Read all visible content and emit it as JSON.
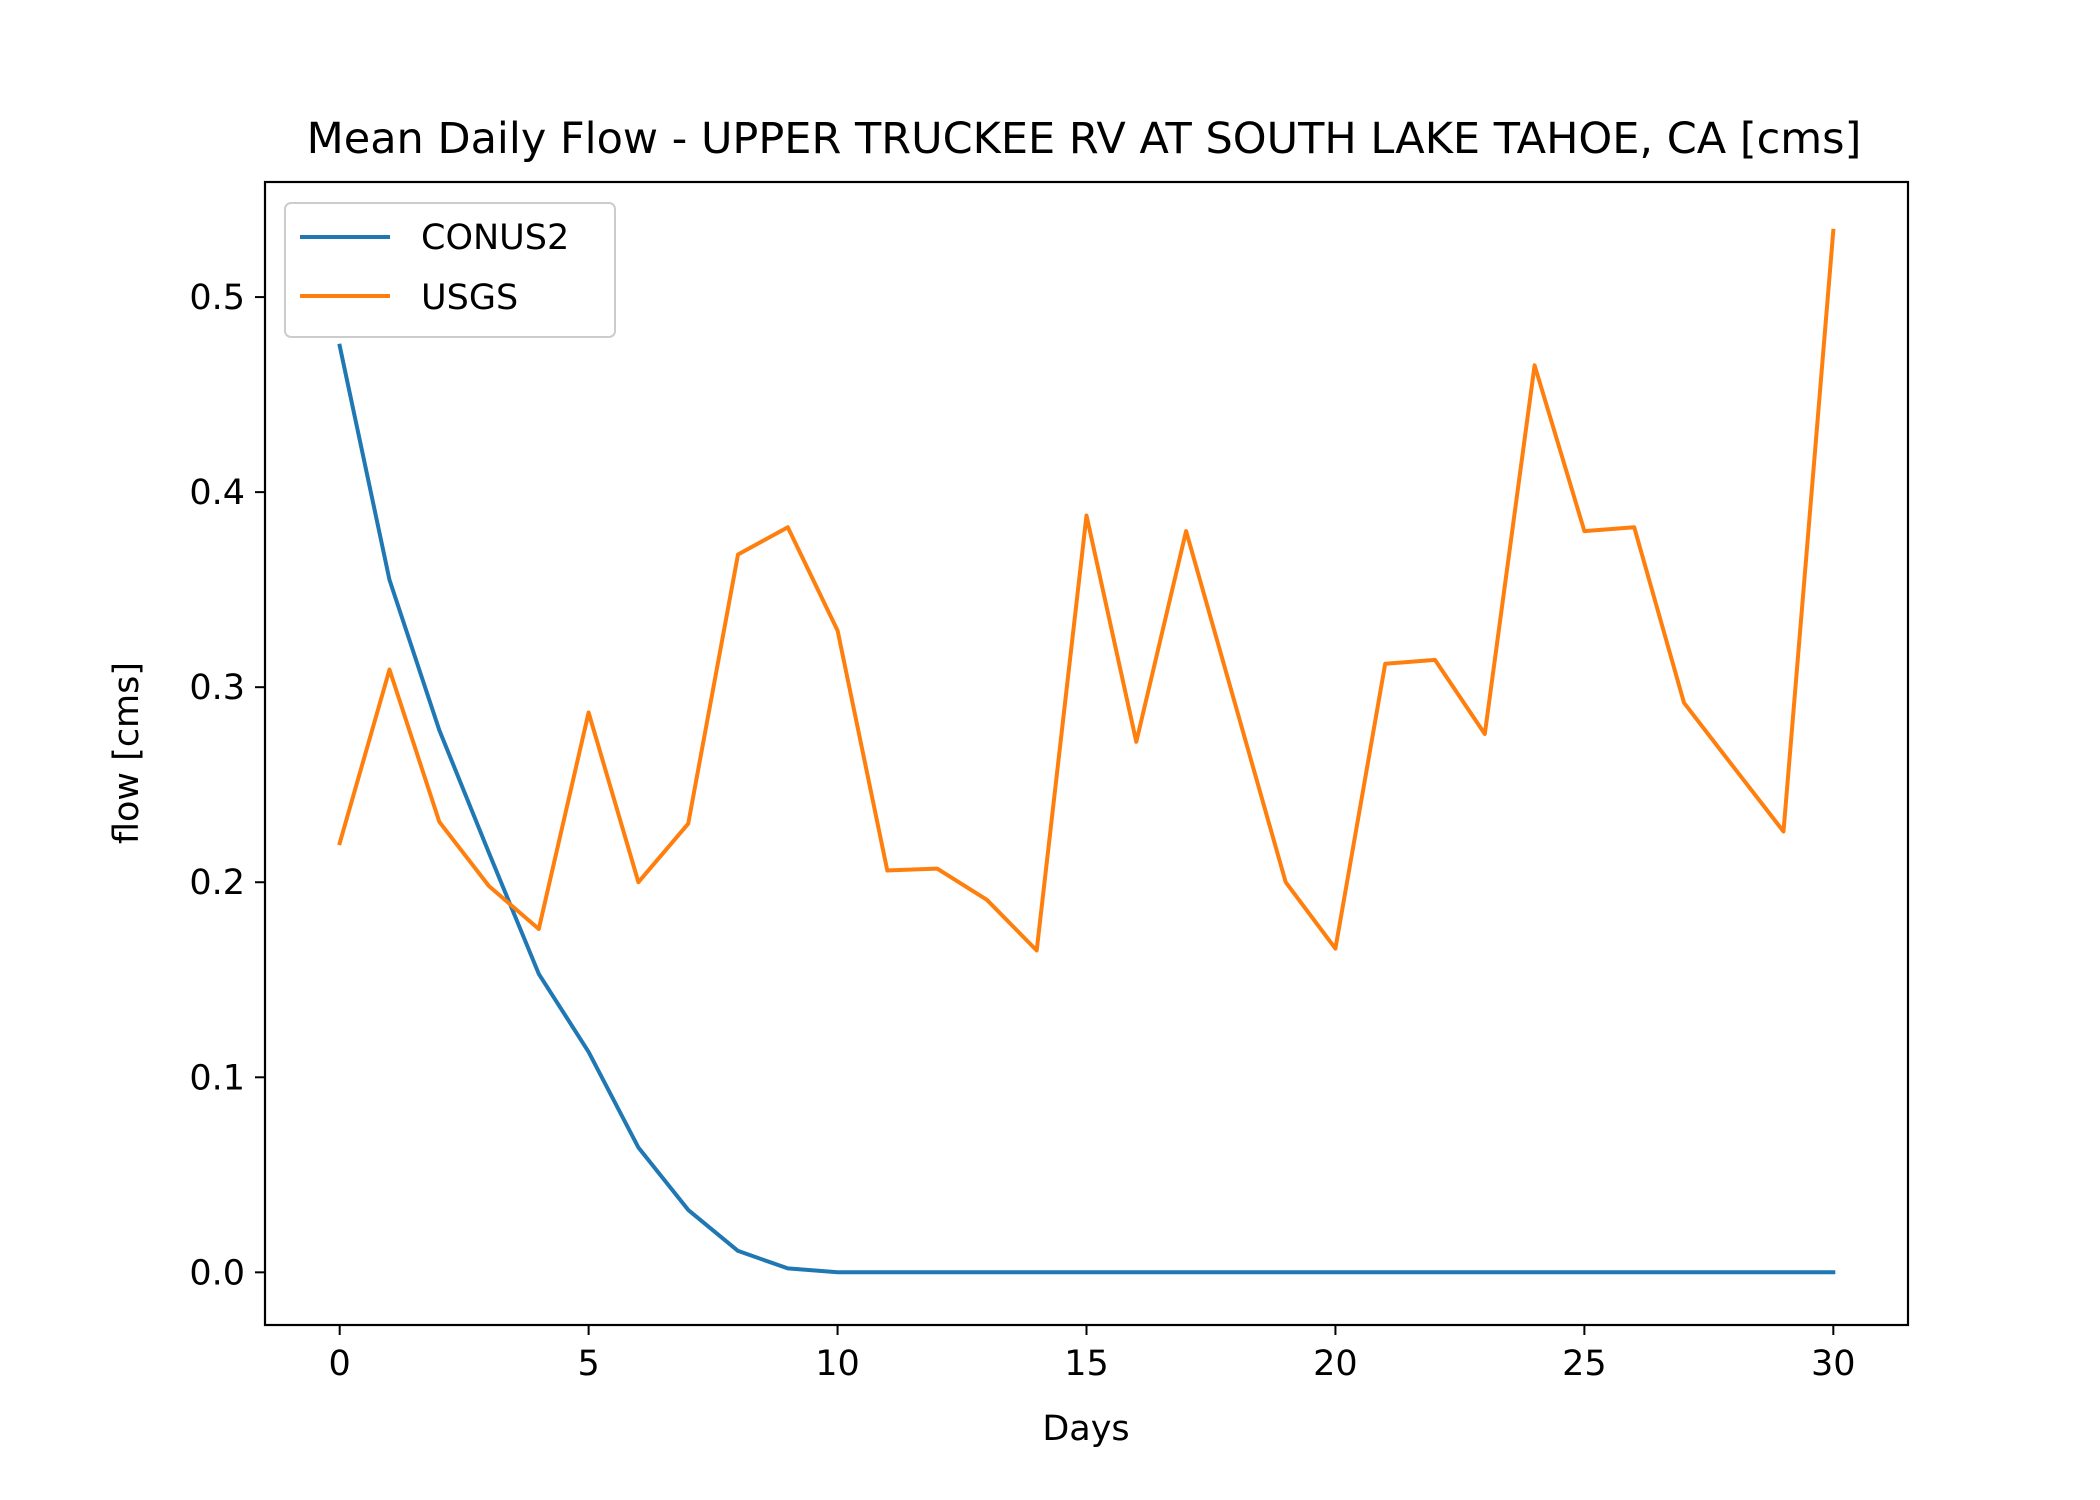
{
  "chart_data": {
    "type": "line",
    "title": "Mean Daily Flow - UPPER TRUCKEE RV AT SOUTH LAKE TAHOE, CA [cms]",
    "xlabel": "Days",
    "ylabel": "flow [cms]",
    "xlim": [
      -1.5,
      31.5
    ],
    "ylim": [
      -0.027,
      0.559
    ],
    "xticks": [
      0,
      5,
      10,
      15,
      20,
      25,
      30
    ],
    "xtick_labels": [
      "0",
      "5",
      "10",
      "15",
      "20",
      "25",
      "30"
    ],
    "yticks": [
      0.0,
      0.1,
      0.2,
      0.3,
      0.4,
      0.5
    ],
    "ytick_labels": [
      "0.0",
      "0.1",
      "0.2",
      "0.3",
      "0.4",
      "0.5"
    ],
    "grid": false,
    "legend_position": "upper left",
    "x": [
      0,
      1,
      2,
      3,
      4,
      5,
      6,
      7,
      8,
      9,
      10,
      11,
      12,
      13,
      14,
      15,
      16,
      17,
      18,
      19,
      20,
      21,
      22,
      23,
      24,
      25,
      26,
      27,
      28,
      29,
      30
    ],
    "series": [
      {
        "name": "CONUS2",
        "color": "#1f77b4",
        "values": [
          0.475,
          0.355,
          0.278,
          0.215,
          0.153,
          0.113,
          0.064,
          0.032,
          0.011,
          0.002,
          0.0,
          0.0,
          0.0,
          0.0,
          0.0,
          0.0,
          0.0,
          0.0,
          0.0,
          0.0,
          0.0,
          0.0,
          0.0,
          0.0,
          0.0,
          0.0,
          0.0,
          0.0,
          0.0,
          0.0,
          0.0
        ]
      },
      {
        "name": "USGS",
        "color": "#ff7f0e",
        "values": [
          0.22,
          0.309,
          0.231,
          0.198,
          0.176,
          0.287,
          0.2,
          0.23,
          0.368,
          0.382,
          0.329,
          0.206,
          0.207,
          0.191,
          0.165,
          0.388,
          0.272,
          0.38,
          0.29,
          0.2,
          0.166,
          0.312,
          0.314,
          0.276,
          0.465,
          0.38,
          0.382,
          0.292,
          0.259,
          0.226,
          0.534
        ]
      }
    ]
  }
}
